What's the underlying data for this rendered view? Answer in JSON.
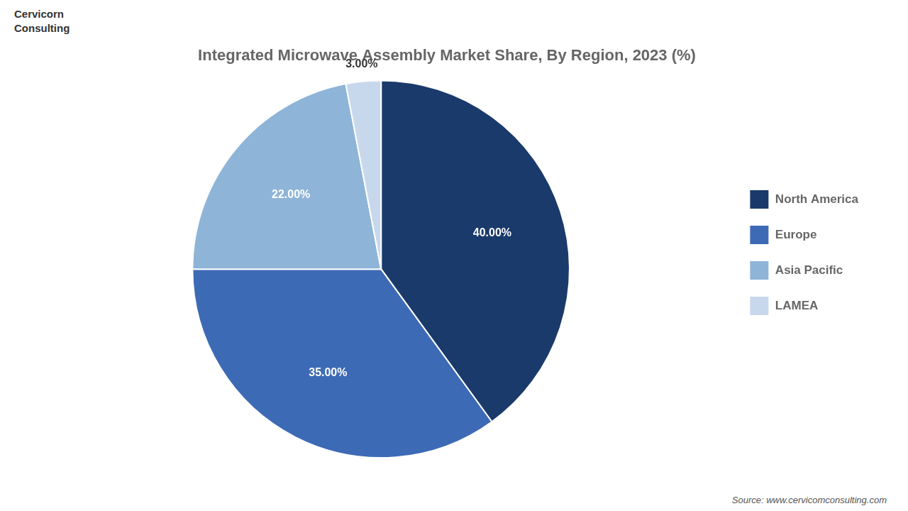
{
  "chart_data": {
    "type": "pie",
    "title": "Integrated Microwave Assembly Market Share, By Region, 2023 (%)",
    "categories": [
      "North America",
      "Europe",
      "Asia Pacific",
      "LAMEA"
    ],
    "values": [
      40.0,
      35.0,
      22.0,
      3.0
    ],
    "value_labels": [
      "40.00%",
      "35.00%",
      "22.00%",
      "3.00%"
    ],
    "colors": [
      "#1a3a6b",
      "#3d6ab5",
      "#8eb4d8",
      "#c8d8ec"
    ],
    "data_labels": true,
    "legend": "right",
    "annotations": [
      "Cervicorn",
      "Consulting",
      "Source: www.cervicomconsulting.com"
    ]
  }
}
